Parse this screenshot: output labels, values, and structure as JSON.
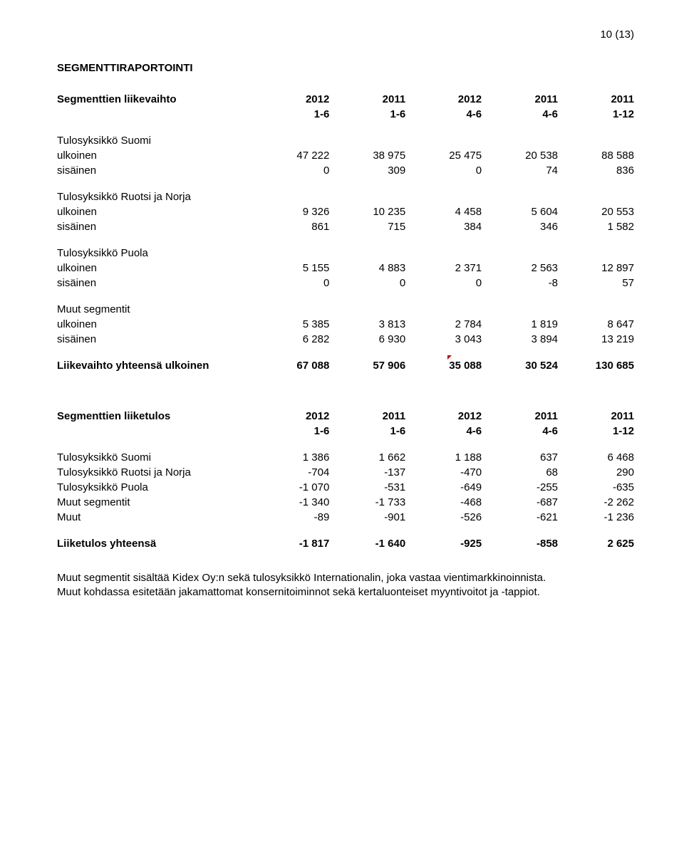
{
  "page_number": "10 (13)",
  "section_title": "SEGMENTTIRAPORTOINTI",
  "t1": {
    "header1": [
      "Segmenttien liikevaihto",
      "2012",
      "2011",
      "2012",
      "2011",
      "2011"
    ],
    "header2": [
      "",
      "1-6",
      "1-6",
      "4-6",
      "4-6",
      "1-12"
    ],
    "groups": [
      {
        "label": "Tulosyksikkö Suomi",
        "rows": [
          [
            "ulkoinen",
            "47 222",
            "38 975",
            "25 475",
            "20 538",
            "88 588"
          ],
          [
            "sisäinen",
            "0",
            "309",
            "0",
            "74",
            "836"
          ]
        ]
      },
      {
        "label": "Tulosyksikkö Ruotsi ja Norja",
        "rows": [
          [
            "ulkoinen",
            "9 326",
            "10 235",
            "4 458",
            "5 604",
            "20 553"
          ],
          [
            "sisäinen",
            "861",
            "715",
            "384",
            "346",
            "1 582"
          ]
        ]
      },
      {
        "label": "Tulosyksikkö Puola",
        "rows": [
          [
            "ulkoinen",
            "5 155",
            "4 883",
            "2 371",
            "2 563",
            "12 897"
          ],
          [
            "sisäinen",
            "0",
            "0",
            "0",
            "-8",
            "57"
          ]
        ]
      },
      {
        "label": "Muut segmentit",
        "rows": [
          [
            "ulkoinen",
            "5 385",
            "3 813",
            "2 784",
            "1 819",
            "8 647"
          ],
          [
            "sisäinen",
            "6 282",
            "6 930",
            "3 043",
            "3 894",
            "13 219"
          ]
        ]
      }
    ],
    "total": [
      "Liikevaihto yhteensä ulkoinen",
      "67 088",
      "57 906",
      "35 088",
      "30 524",
      "130 685"
    ]
  },
  "t2": {
    "header1": [
      "Segmenttien liiketulos",
      "2012",
      "2011",
      "2012",
      "2011",
      "2011"
    ],
    "header2": [
      "",
      "1-6",
      "1-6",
      "4-6",
      "4-6",
      "1-12"
    ],
    "rows": [
      [
        "Tulosyksikkö Suomi",
        "1 386",
        "1 662",
        "1 188",
        "637",
        "6 468"
      ],
      [
        "Tulosyksikkö Ruotsi ja Norja",
        "-704",
        "-137",
        "-470",
        "68",
        "290"
      ],
      [
        "Tulosyksikkö Puola",
        "-1 070",
        "-531",
        "-649",
        "-255",
        "-635"
      ],
      [
        "Muut segmentit",
        "-1 340",
        "-1 733",
        "-468",
        "-687",
        "-2 262"
      ],
      [
        "Muut",
        "-89",
        "-901",
        "-526",
        "-621",
        "-1 236"
      ]
    ],
    "total": [
      "Liiketulos yhteensä",
      "-1 817",
      "-1 640",
      "-925",
      "-858",
      "2 625"
    ]
  },
  "notes": [
    "Muut segmentit sisältää Kidex Oy:n sekä tulosyksikkö Internationalin, joka vastaa vientimarkkinoinnista.",
    "Muut kohdassa esitetään jakamattomat konsernitoiminnot sekä kertaluonteiset myyntivoitot ja -tappiot."
  ]
}
